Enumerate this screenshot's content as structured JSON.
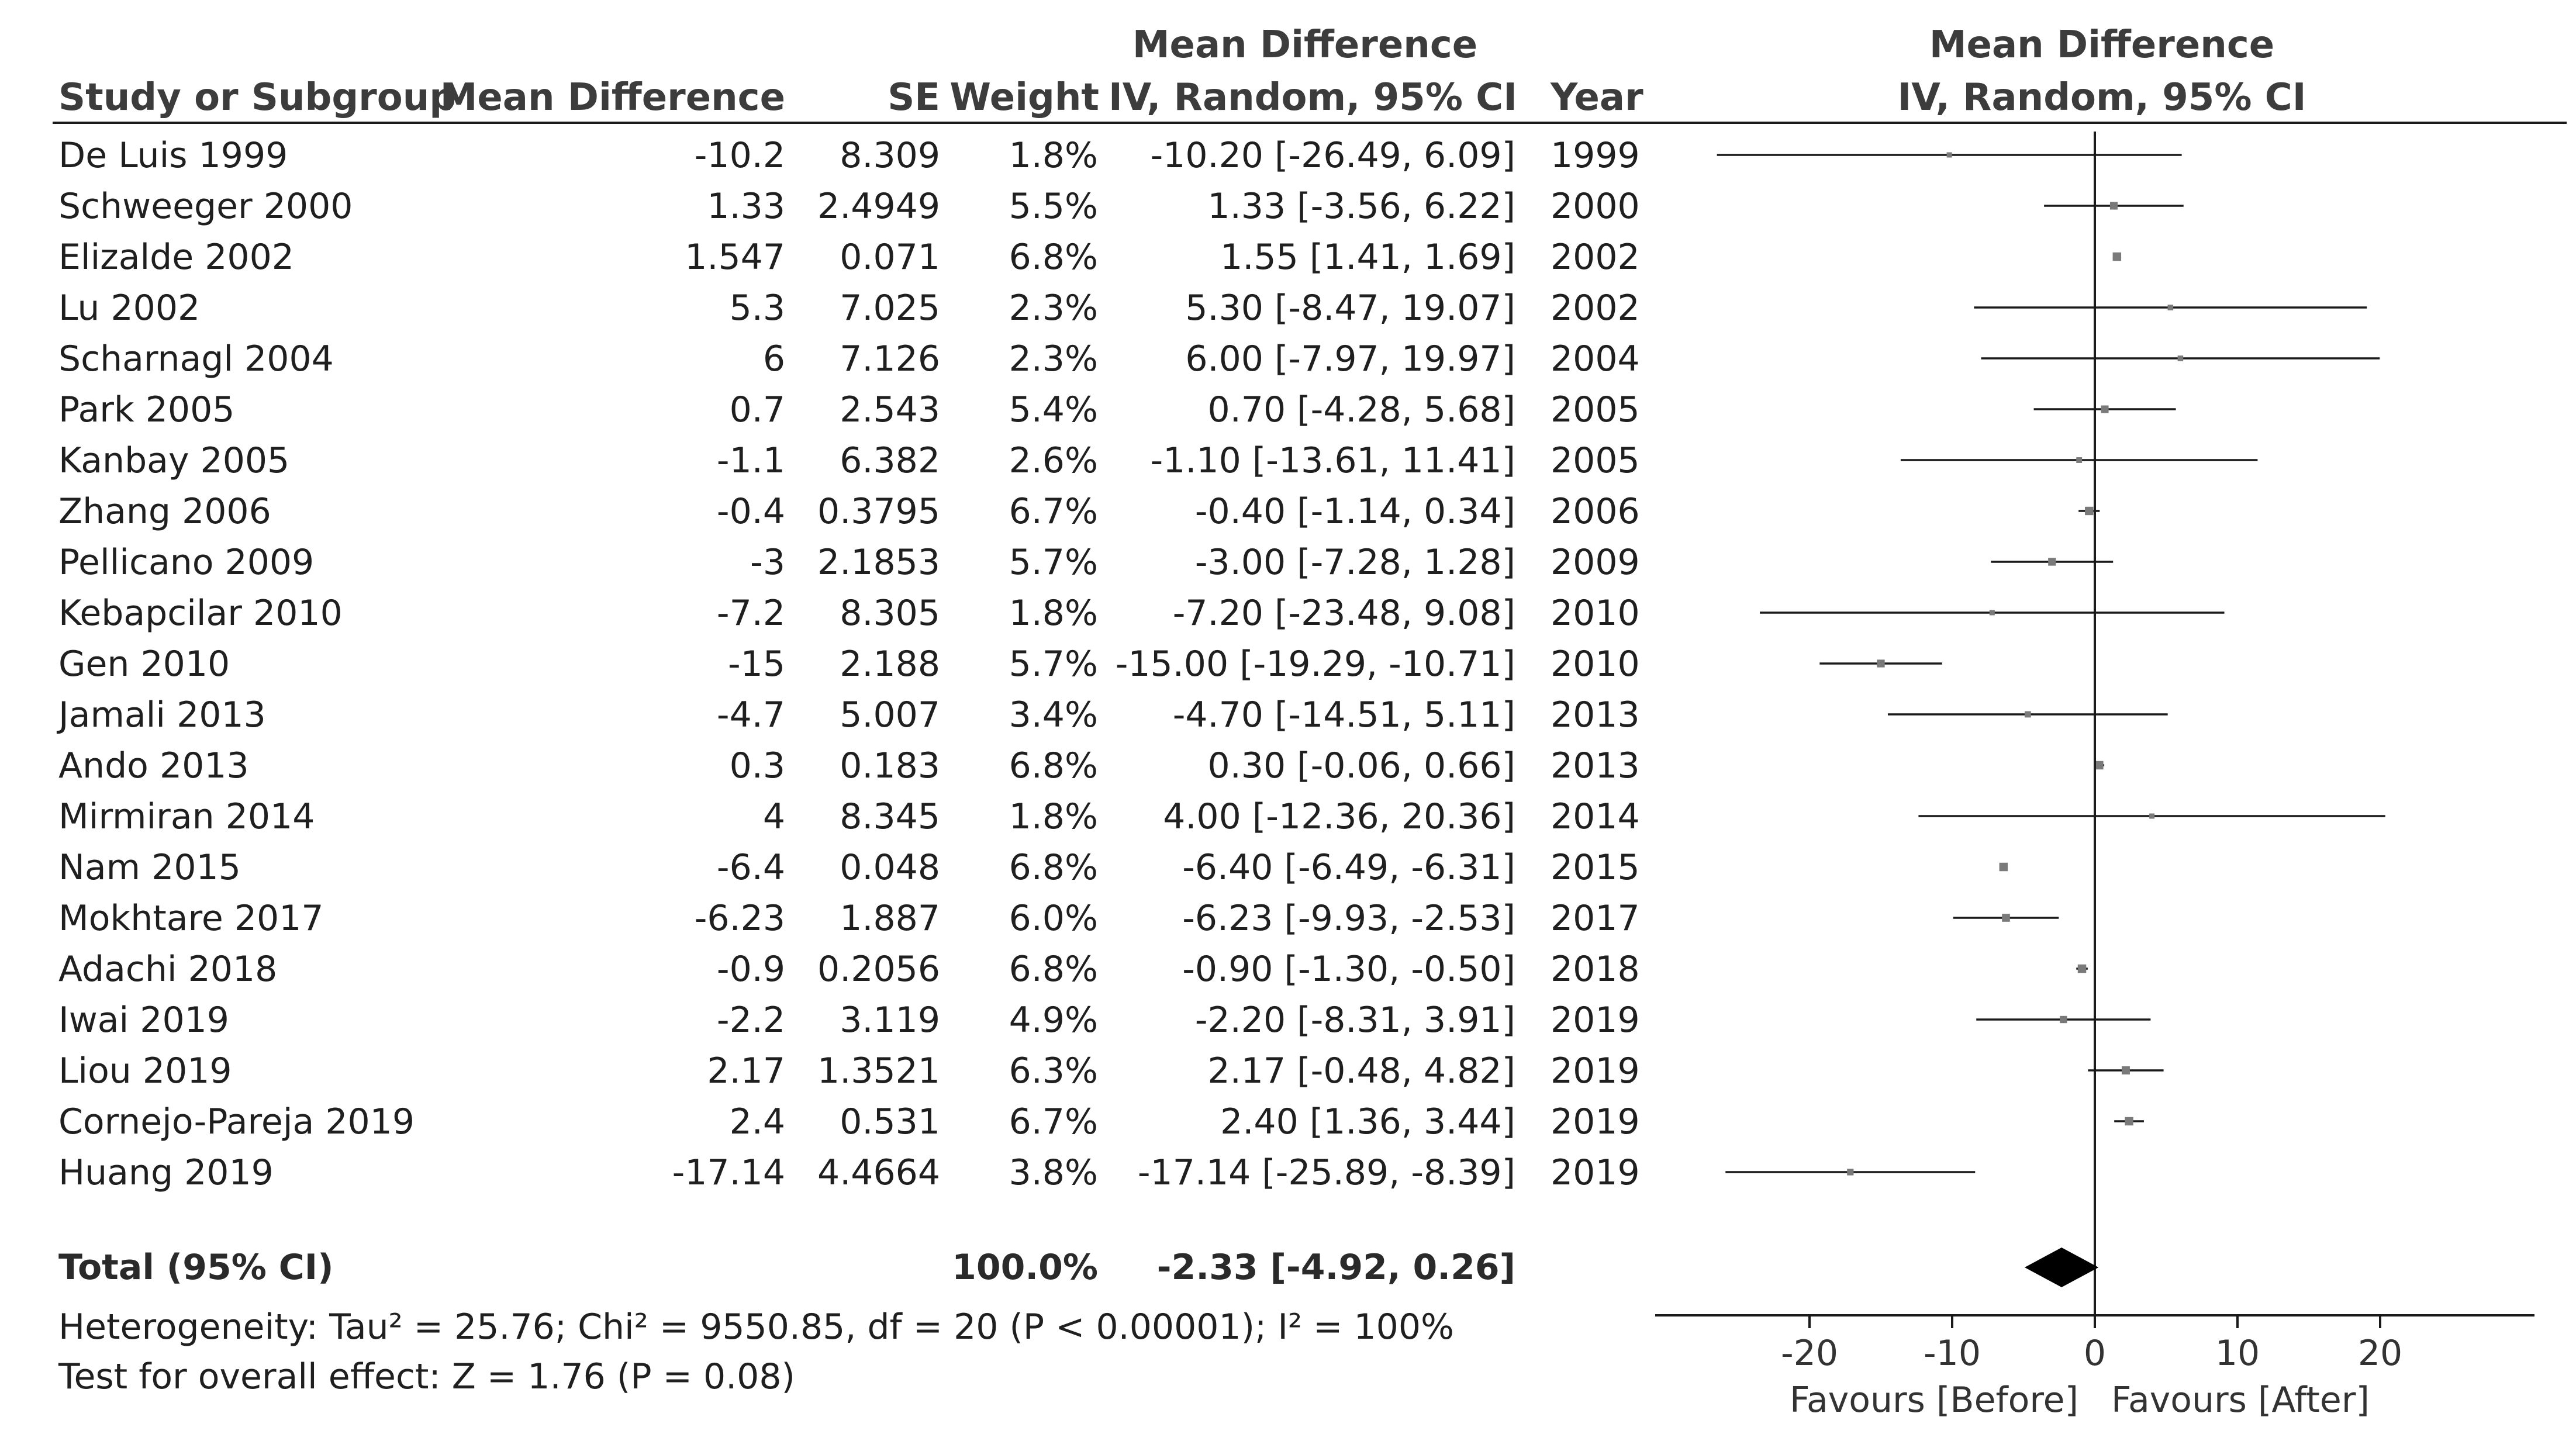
{
  "chart_data": {
    "type": "forest",
    "headers": {
      "study": "Study or Subgroup",
      "md": "Mean Difference",
      "se": "SE",
      "weight": "Weight",
      "ci_top": "Mean Difference",
      "ci": "IV, Random, 95% CI",
      "year": "Year",
      "plot_top": "Mean Difference",
      "plot": "IV, Random, 95% CI"
    },
    "studies": [
      {
        "study": "De Luis 1999",
        "md": "-10.2",
        "se": "8.309",
        "weight": "1.8%",
        "ci": "-10.20 [-26.49, 6.09]",
        "year": "1999",
        "est": -10.2,
        "lo": -26.49,
        "hi": 6.09,
        "w": 1.8
      },
      {
        "study": "Schweeger 2000",
        "md": "1.33",
        "se": "2.4949",
        "weight": "5.5%",
        "ci": "1.33 [-3.56, 6.22]",
        "year": "2000",
        "est": 1.33,
        "lo": -3.56,
        "hi": 6.22,
        "w": 5.5
      },
      {
        "study": "Elizalde 2002",
        "md": "1.547",
        "se": "0.071",
        "weight": "6.8%",
        "ci": "1.55 [1.41, 1.69]",
        "year": "2002",
        "est": 1.55,
        "lo": 1.41,
        "hi": 1.69,
        "w": 6.8
      },
      {
        "study": "Lu 2002",
        "md": "5.3",
        "se": "7.025",
        "weight": "2.3%",
        "ci": "5.30 [-8.47, 19.07]",
        "year": "2002",
        "est": 5.3,
        "lo": -8.47,
        "hi": 19.07,
        "w": 2.3
      },
      {
        "study": "Scharnagl 2004",
        "md": "6",
        "se": "7.126",
        "weight": "2.3%",
        "ci": "6.00 [-7.97, 19.97]",
        "year": "2004",
        "est": 6.0,
        "lo": -7.97,
        "hi": 19.97,
        "w": 2.3
      },
      {
        "study": "Park 2005",
        "md": "0.7",
        "se": "2.543",
        "weight": "5.4%",
        "ci": "0.70 [-4.28, 5.68]",
        "year": "2005",
        "est": 0.7,
        "lo": -4.28,
        "hi": 5.68,
        "w": 5.4
      },
      {
        "study": "Kanbay 2005",
        "md": "-1.1",
        "se": "6.382",
        "weight": "2.6%",
        "ci": "-1.10 [-13.61, 11.41]",
        "year": "2005",
        "est": -1.1,
        "lo": -13.61,
        "hi": 11.41,
        "w": 2.6
      },
      {
        "study": "Zhang 2006",
        "md": "-0.4",
        "se": "0.3795",
        "weight": "6.7%",
        "ci": "-0.40 [-1.14, 0.34]",
        "year": "2006",
        "est": -0.4,
        "lo": -1.14,
        "hi": 0.34,
        "w": 6.7
      },
      {
        "study": "Pellicano 2009",
        "md": "-3",
        "se": "2.1853",
        "weight": "5.7%",
        "ci": "-3.00 [-7.28, 1.28]",
        "year": "2009",
        "est": -3.0,
        "lo": -7.28,
        "hi": 1.28,
        "w": 5.7
      },
      {
        "study": "Kebapcilar 2010",
        "md": "-7.2",
        "se": "8.305",
        "weight": "1.8%",
        "ci": "-7.20 [-23.48, 9.08]",
        "year": "2010",
        "est": -7.2,
        "lo": -23.48,
        "hi": 9.08,
        "w": 1.8
      },
      {
        "study": "Gen 2010",
        "md": "-15",
        "se": "2.188",
        "weight": "5.7%",
        "ci": "-15.00 [-19.29, -10.71]",
        "year": "2010",
        "est": -15.0,
        "lo": -19.29,
        "hi": -10.71,
        "w": 5.7
      },
      {
        "study": "Jamali 2013",
        "md": "-4.7",
        "se": "5.007",
        "weight": "3.4%",
        "ci": "-4.70 [-14.51, 5.11]",
        "year": "2013",
        "est": -4.7,
        "lo": -14.51,
        "hi": 5.11,
        "w": 3.4
      },
      {
        "study": "Ando 2013",
        "md": "0.3",
        "se": "0.183",
        "weight": "6.8%",
        "ci": "0.30 [-0.06, 0.66]",
        "year": "2013",
        "est": 0.3,
        "lo": -0.06,
        "hi": 0.66,
        "w": 6.8
      },
      {
        "study": "Mirmiran 2014",
        "md": "4",
        "se": "8.345",
        "weight": "1.8%",
        "ci": "4.00 [-12.36, 20.36]",
        "year": "2014",
        "est": 4.0,
        "lo": -12.36,
        "hi": 20.36,
        "w": 1.8
      },
      {
        "study": "Nam 2015",
        "md": "-6.4",
        "se": "0.048",
        "weight": "6.8%",
        "ci": "-6.40 [-6.49, -6.31]",
        "year": "2015",
        "est": -6.4,
        "lo": -6.49,
        "hi": -6.31,
        "w": 6.8
      },
      {
        "study": "Mokhtare 2017",
        "md": "-6.23",
        "se": "1.887",
        "weight": "6.0%",
        "ci": "-6.23 [-9.93, -2.53]",
        "year": "2017",
        "est": -6.23,
        "lo": -9.93,
        "hi": -2.53,
        "w": 6.0
      },
      {
        "study": "Adachi 2018",
        "md": "-0.9",
        "se": "0.2056",
        "weight": "6.8%",
        "ci": "-0.90 [-1.30, -0.50]",
        "year": "2018",
        "est": -0.9,
        "lo": -1.3,
        "hi": -0.5,
        "w": 6.8
      },
      {
        "study": "Iwai 2019",
        "md": "-2.2",
        "se": "3.119",
        "weight": "4.9%",
        "ci": "-2.20 [-8.31, 3.91]",
        "year": "2019",
        "est": -2.2,
        "lo": -8.31,
        "hi": 3.91,
        "w": 4.9
      },
      {
        "study": "Liou 2019",
        "md": "2.17",
        "se": "1.3521",
        "weight": "6.3%",
        "ci": "2.17 [-0.48, 4.82]",
        "year": "2019",
        "est": 2.17,
        "lo": -0.48,
        "hi": 4.82,
        "w": 6.3
      },
      {
        "study": "Cornejo-Pareja 2019",
        "md": "2.4",
        "se": "0.531",
        "weight": "6.7%",
        "ci": "2.40 [1.36, 3.44]",
        "year": "2019",
        "est": 2.4,
        "lo": 1.36,
        "hi": 3.44,
        "w": 6.7
      },
      {
        "study": "Huang 2019",
        "md": "-17.14",
        "se": "4.4664",
        "weight": "3.8%",
        "ci": "-17.14 [-25.89, -8.39]",
        "year": "2019",
        "est": -17.14,
        "lo": -25.89,
        "hi": -8.39,
        "w": 3.8
      }
    ],
    "total": {
      "label": "Total (95% CI)",
      "weight": "100.0%",
      "ci": "-2.33 [-4.92, 0.26]",
      "est": -2.33,
      "lo": -4.92,
      "hi": 0.26
    },
    "heterogeneity": "Heterogeneity: Tau² = 25.76; Chi² = 9550.85, df = 20 (P < 0.00001); I² = 100%",
    "overall_effect": "Test for overall effect: Z = 1.76 (P = 0.08)",
    "axis": {
      "xlim": [
        -30,
        30
      ],
      "ticks": [
        -20,
        -10,
        0,
        10,
        20
      ],
      "tick_labels": [
        "-20",
        "-10",
        "0",
        "10",
        "20"
      ],
      "favours_left": "Favours [Before]",
      "favours_right": "Favours [After]"
    },
    "colors": {
      "ink": "#1a1a1a",
      "marker": "#7a7a7a",
      "diamond": "#000000"
    }
  }
}
